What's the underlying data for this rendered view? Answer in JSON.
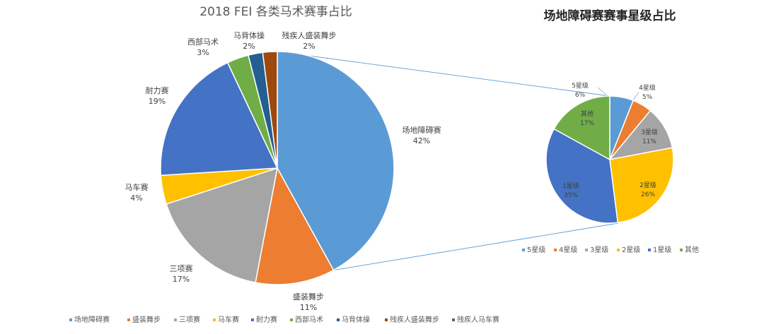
{
  "chart_data": [
    {
      "type": "pie",
      "title": "2018 FEI 各类马术赛事占比",
      "categories": [
        "场地障碍赛",
        "盛装舞步",
        "三项赛",
        "马车赛",
        "耐力赛",
        "西部马术",
        "马背体操",
        "残疾人盛装舞步",
        "残疾人马车赛"
      ],
      "values": [
        42,
        11,
        17,
        4,
        19,
        3,
        2,
        2,
        0
      ],
      "value_labels": [
        "42%",
        "11%",
        "17%",
        "4%",
        "19%",
        "3%",
        "2%",
        "2%",
        ""
      ],
      "colors": [
        "#5b9bd5",
        "#ed7d31",
        "#a5a5a5",
        "#ffc000",
        "#4472c4",
        "#70ad47",
        "#255e91",
        "#9e480e",
        "#636363"
      ],
      "legend_position": "bottom"
    },
    {
      "type": "pie",
      "title": "场地障碍赛赛事星级占比",
      "categories": [
        "5星级",
        "4星级",
        "3星级",
        "2星级",
        "1星级",
        "其他"
      ],
      "values": [
        6,
        5,
        11,
        26,
        35,
        17
      ],
      "value_labels": [
        "6%",
        "5%",
        "11%",
        "26%",
        "35%",
        "17%"
      ],
      "colors": [
        "#5b9bd5",
        "#ed7d31",
        "#a5a5a5",
        "#ffc000",
        "#4472c4",
        "#70ad47"
      ],
      "legend_position": "bottom"
    }
  ]
}
